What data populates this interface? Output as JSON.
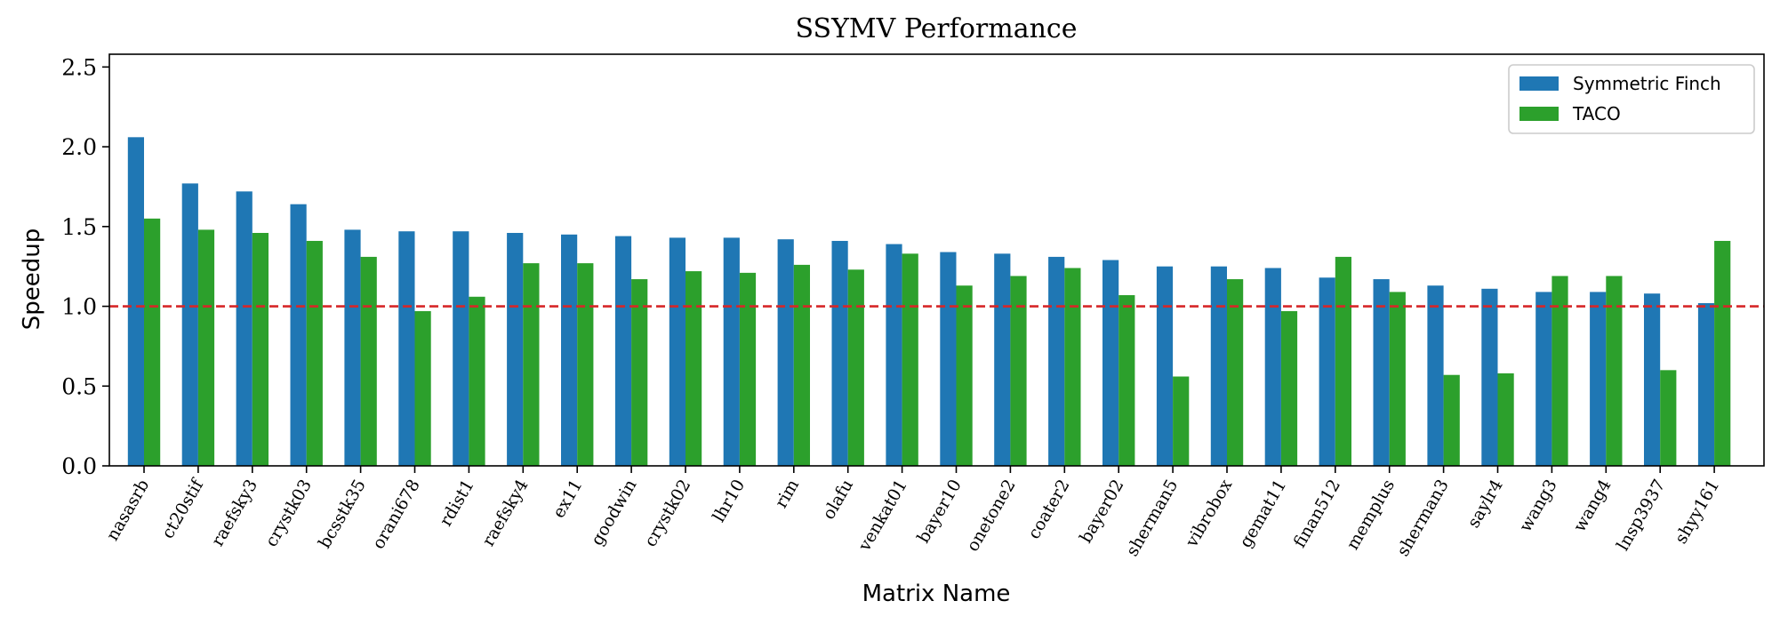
{
  "chart_data": {
    "type": "bar",
    "title": "SSYMV Performance",
    "xlabel": "Matrix Name",
    "ylabel": "Speedup",
    "ylim": [
      0,
      2.58
    ],
    "yticks": [
      "0.0",
      "0.5",
      "1.0",
      "1.5",
      "2.0",
      "2.5"
    ],
    "reference_line": {
      "y": 1.0,
      "color": "#d62728",
      "style": "dashed"
    },
    "legend_position": "top-right",
    "grid": false,
    "categories": [
      "nasasrb",
      "ct20stif",
      "raefsky3",
      "crystk03",
      "bcsstk35",
      "orani678",
      "rdist1",
      "raefsky4",
      "ex11",
      "goodwin",
      "crystk02",
      "lhr10",
      "rim",
      "olafu",
      "venkat01",
      "bayer10",
      "onetone2",
      "coater2",
      "bayer02",
      "sherman5",
      "vibrobox",
      "gemat11",
      "finan512",
      "memplus",
      "sherman3",
      "saylr4",
      "wang3",
      "wang4",
      "lnsp3937",
      "shyy161"
    ],
    "series": [
      {
        "name": "Symmetric Finch",
        "color": "#1f77b4",
        "values": [
          2.06,
          1.77,
          1.72,
          1.64,
          1.48,
          1.47,
          1.47,
          1.46,
          1.45,
          1.44,
          1.43,
          1.43,
          1.42,
          1.41,
          1.39,
          1.34,
          1.33,
          1.31,
          1.29,
          1.25,
          1.25,
          1.24,
          1.18,
          1.17,
          1.13,
          1.11,
          1.09,
          1.09,
          1.08,
          1.02
        ]
      },
      {
        "name": "TACO",
        "color": "#2ca02c",
        "values": [
          1.55,
          1.48,
          1.46,
          1.41,
          1.31,
          0.97,
          1.06,
          1.27,
          1.27,
          1.17,
          1.22,
          1.21,
          1.26,
          1.23,
          1.33,
          1.13,
          1.19,
          1.24,
          1.07,
          0.56,
          1.17,
          0.97,
          1.31,
          1.09,
          0.57,
          0.58,
          1.19,
          1.19,
          0.6,
          1.41
        ]
      }
    ]
  }
}
